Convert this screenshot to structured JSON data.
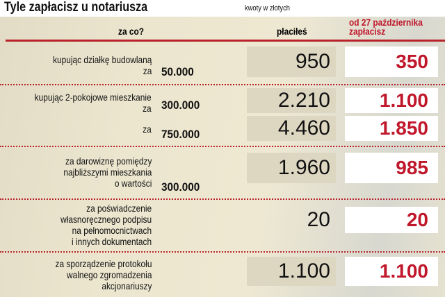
{
  "title": "Tyle zapłacisz u notariusza",
  "unit_note": "kwoty w złotych",
  "colors": {
    "accent": "#c0172b",
    "background": "#e8e2ca"
  },
  "chart_data": {
    "type": "table",
    "columns": [
      "za co?",
      "płaciłeś",
      "od 27 października zapłacisz"
    ],
    "rows": [
      {
        "label": [
          "kupując działkę budowlaną",
          "za"
        ],
        "base": "50.000",
        "old": "950",
        "new": "350"
      },
      {
        "label": [
          "kupując 2-pokojowe mieszkanie",
          "za"
        ],
        "base": "300.000",
        "old": "2.210",
        "new": "1.100"
      },
      {
        "label": [
          "za"
        ],
        "base": "750.000",
        "old": "4.460",
        "new": "1.850"
      },
      {
        "label": [
          "za darowiznę pomiędzy",
          "najbliższymi mieszkania",
          "o wartości"
        ],
        "base": "300.000",
        "old": "1.960",
        "new": "985"
      },
      {
        "label": [
          "za poświadczenie",
          "własnoręcznego podpisu",
          "na pełnomocnictwach",
          "i innych dokumentach"
        ],
        "base": "",
        "old": "20",
        "new": "20"
      },
      {
        "label": [
          "za sporządzenie protokołu",
          "walnego zgromadzenia",
          "akcjonariuszy"
        ],
        "base": "",
        "old": "1.100",
        "new": "1.100"
      }
    ]
  }
}
